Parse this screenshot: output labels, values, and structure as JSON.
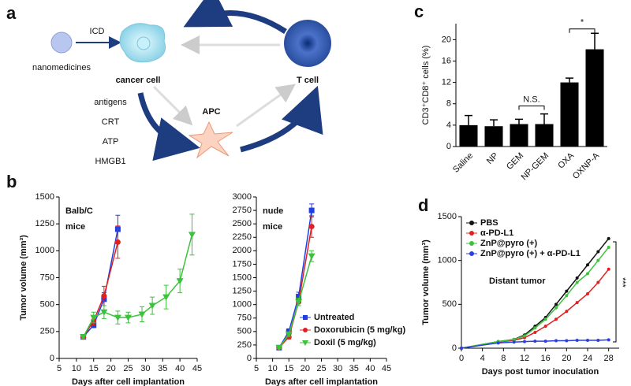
{
  "panel_labels": [
    "a",
    "b",
    "c",
    "d"
  ],
  "diagram": {
    "nodes": [
      {
        "label": "nanomedicines"
      },
      {
        "label": "ICD"
      },
      {
        "label": "cancer cell"
      },
      {
        "label": "T cell"
      },
      {
        "label": "APC"
      }
    ],
    "signals": [
      "antigens",
      "CRT",
      "ATP",
      "HMGB1"
    ]
  },
  "chart_data": [
    {
      "type": "line",
      "xlabel": "Days after cell implantation",
      "ylabel": "Tumor volume (mm³)",
      "annotations": [
        "Balb/C",
        "mice"
      ],
      "x": [
        12,
        15,
        18,
        22,
        25,
        29,
        32,
        36,
        40,
        43.5
      ],
      "xlim": [
        5,
        45
      ],
      "xticks": [
        5,
        10,
        15,
        20,
        25,
        30,
        35,
        40,
        45
      ],
      "ylim": [
        0,
        1500
      ],
      "yticks": [
        0,
        250,
        500,
        750,
        1000,
        1250,
        1500
      ],
      "series": [
        {
          "color": "#1f3fe0",
          "marker": "square",
          "values": [
            200,
            310,
            550,
            1200,
            null,
            null,
            null,
            null,
            null,
            null
          ],
          "errors": [
            15,
            25,
            60,
            130,
            null,
            null,
            null,
            null,
            null,
            null
          ]
        },
        {
          "color": "#e02020",
          "marker": "circle",
          "values": [
            200,
            350,
            580,
            1080,
            null,
            null,
            null,
            null,
            null,
            null
          ],
          "errors": [
            15,
            40,
            90,
            150,
            null,
            null,
            null,
            null,
            null,
            null
          ]
        },
        {
          "color": "#3cc23c",
          "marker": "triangle",
          "values": [
            200,
            380,
            430,
            380,
            380,
            410,
            490,
            570,
            720,
            1150
          ],
          "errors": [
            15,
            50,
            60,
            60,
            50,
            70,
            80,
            110,
            110,
            190
          ]
        }
      ]
    },
    {
      "type": "line",
      "xlabel": "Days after cell implantation",
      "annotations": [
        "nude",
        "mice"
      ],
      "legend": "lower right",
      "x": [
        12,
        15,
        18,
        22
      ],
      "xlim": [
        5,
        45
      ],
      "xticks": [
        5,
        10,
        15,
        20,
        25,
        30,
        35,
        40,
        45
      ],
      "ylim": [
        0,
        3000
      ],
      "yticks": [
        0,
        250,
        500,
        750,
        1000,
        1250,
        1500,
        1750,
        2000,
        2250,
        2500,
        2750,
        3000
      ],
      "series": [
        {
          "name": "Untreated",
          "color": "#1f3fe0",
          "marker": "square",
          "values": [
            200,
            500,
            1150,
            2750
          ],
          "errors": [
            20,
            50,
            80,
            120
          ]
        },
        {
          "name": "Doxorubicin (5 mg/kg)",
          "color": "#e02020",
          "marker": "circle",
          "values": [
            200,
            400,
            1050,
            2450
          ],
          "errors": [
            20,
            40,
            70,
            200
          ]
        },
        {
          "name": "Doxil (5 mg/kg)",
          "color": "#3cc23c",
          "marker": "triangle",
          "values": [
            200,
            450,
            1050,
            1900
          ],
          "errors": [
            20,
            40,
            70,
            100
          ]
        }
      ]
    },
    {
      "type": "bar",
      "ylabel": "CD3⁺CD8⁺ cells (%)",
      "annotations": [
        "N.S.",
        "*"
      ],
      "color": "#000000",
      "categories": [
        "Saline",
        "NP",
        "GEM",
        "NP-GEM",
        "OXA",
        "OXNP-A"
      ],
      "values": [
        4,
        3.8,
        4.2,
        4.2,
        12,
        18.2
      ],
      "errors": [
        1.8,
        1.2,
        0.9,
        1.9,
        0.8,
        3
      ],
      "ylim": [
        0,
        23
      ],
      "yticks": [
        0,
        4,
        8,
        12,
        16,
        20
      ]
    },
    {
      "type": "line",
      "xlabel": "Days post tumor inoculation",
      "ylabel": "Tumor volume (mm³)",
      "annotations": [
        "Distant tumor",
        "***"
      ],
      "legend": "upper left",
      "x": [
        0,
        7,
        10,
        12,
        14,
        16,
        18,
        20,
        22,
        24,
        26,
        28
      ],
      "xlim": [
        0,
        30
      ],
      "xticks": [
        0,
        4,
        8,
        12,
        16,
        20,
        24,
        28
      ],
      "ylim": [
        0,
        1500
      ],
      "yticks": [
        0,
        500,
        1000,
        1500
      ],
      "series": [
        {
          "name": "PBS",
          "color": "#111111",
          "marker": "circle",
          "values": [
            0,
            75,
            100,
            150,
            250,
            350,
            500,
            650,
            800,
            950,
            1100,
            1250
          ]
        },
        {
          "name": "α-PD-L1",
          "color": "#e02020",
          "marker": "circle",
          "values": [
            0,
            70,
            90,
            120,
            180,
            250,
            330,
            420,
            520,
            620,
            750,
            900
          ]
        },
        {
          "name": "ZnP@pyro (+)",
          "color": "#3cc23c",
          "marker": "circle",
          "values": [
            0,
            75,
            100,
            140,
            230,
            330,
            460,
            600,
            750,
            850,
            1000,
            1150
          ]
        },
        {
          "name": "ZnP@pyro (+) + α-PD-L1",
          "color": "#2a3fe0",
          "marker": "circle",
          "values": [
            0,
            60,
            70,
            75,
            80,
            80,
            85,
            85,
            90,
            90,
            90,
            95
          ]
        }
      ]
    }
  ]
}
